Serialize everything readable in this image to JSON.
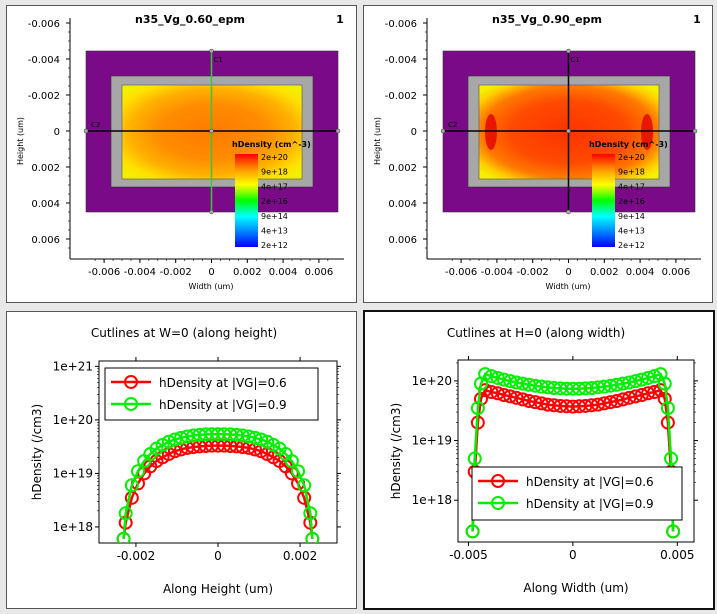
{
  "colors": {
    "purple": "#7a0a87",
    "gray": "#a7a7a7",
    "red_series": "#ff0000",
    "green_series": "#00ee00",
    "black": "#000000"
  },
  "plot_panels": [
    {
      "title": "n35_Vg_0.60_epm",
      "index": "1",
      "xlabel": "Width (um)",
      "ylabel": "Height (um)",
      "xticks": [
        "-0.006",
        "-0.004",
        "-0.002",
        "0",
        "0.002",
        "0.004",
        "0.006"
      ],
      "yticks": [
        "-0.006",
        "-0.004",
        "-0.002",
        "0",
        "0.002",
        "0.004",
        "0.006"
      ],
      "cut_labels": [
        "C1",
        "C2"
      ],
      "legend_title": "hDensity (cm^-3)",
      "legend_ticks": [
        "2e+20",
        "9e+18",
        "4e+17",
        "2e+16",
        "9e+14",
        "4e+13",
        "2e+12"
      ],
      "vertical_cut_color": "#33cc33"
    },
    {
      "title": "n35_Vg_0.90_epm",
      "index": "1",
      "xlabel": "Width (um)",
      "ylabel": "Height (um)",
      "xticks": [
        "-0.006",
        "-0.004",
        "-0.002",
        "0",
        "0.002",
        "0.004",
        "0.006"
      ],
      "yticks": [
        "-0.006",
        "-0.004",
        "-0.002",
        "0",
        "0.002",
        "0.004",
        "0.006"
      ],
      "cut_labels": [
        "C1",
        "C2"
      ],
      "legend_title": "hDensity (cm^-3)",
      "legend_ticks": [
        "2e+20",
        "9e+18",
        "4e+17",
        "2e+16",
        "9e+14",
        "4e+13",
        "2e+12"
      ],
      "vertical_cut_color": "#000000"
    }
  ],
  "chart_data": [
    {
      "type": "line",
      "title": "Cutlines at W=0 (along height)",
      "xlabel": "Along Height (um)",
      "ylabel": "hDensity (/cm3)",
      "xlim": [
        -0.0029,
        0.0029
      ],
      "ylim_exp": [
        17.7,
        21.1
      ],
      "log_y": true,
      "xticks": [
        -0.002,
        0,
        0.002
      ],
      "xtick_labels": [
        "-0.002",
        "0",
        "0.002"
      ],
      "yticks_exp": [
        18,
        19,
        20,
        21
      ],
      "ytick_labels": [
        "1e+18",
        "1e+19",
        "1e+20",
        "1e+21"
      ],
      "legend_position": "top-right",
      "series": [
        {
          "name": "hDensity at |VG|=0.6",
          "color": "#ff0000",
          "x": [
            -0.0023,
            -0.00225,
            -0.0021,
            -0.00195,
            -0.0018,
            -0.00165,
            -0.0015,
            -0.00135,
            -0.0012,
            -0.00105,
            -0.0009,
            -0.00075,
            -0.0006,
            -0.00045,
            -0.0003,
            -0.00015,
            0.0,
            0.00015,
            0.0003,
            0.00045,
            0.0006,
            0.00075,
            0.0009,
            0.00105,
            0.0012,
            0.00135,
            0.0015,
            0.00165,
            0.0018,
            0.00195,
            0.0021,
            0.00225,
            0.0023
          ],
          "y": [
            6e+17,
            1.2e+18,
            3.5e+18,
            6.5e+18,
            1e+19,
            1.35e+19,
            1.7e+19,
            2e+19,
            2.3e+19,
            2.6e+19,
            2.8e+19,
            3e+19,
            3.1e+19,
            3.2e+19,
            3.25e+19,
            3.3e+19,
            3.3e+19,
            3.3e+19,
            3.25e+19,
            3.2e+19,
            3.1e+19,
            3e+19,
            2.8e+19,
            2.6e+19,
            2.3e+19,
            2e+19,
            1.7e+19,
            1.35e+19,
            1e+19,
            6.5e+18,
            3.5e+18,
            1.2e+18,
            6e+17
          ]
        },
        {
          "name": "hDensity at |VG|=0.9",
          "color": "#00ee00",
          "x": [
            -0.0023,
            -0.00225,
            -0.0021,
            -0.00195,
            -0.0018,
            -0.00165,
            -0.0015,
            -0.00135,
            -0.0012,
            -0.00105,
            -0.0009,
            -0.00075,
            -0.0006,
            -0.00045,
            -0.0003,
            -0.00015,
            0.0,
            0.00015,
            0.0003,
            0.00045,
            0.0006,
            0.00075,
            0.0009,
            0.00105,
            0.0012,
            0.00135,
            0.0015,
            0.00165,
            0.0018,
            0.00195,
            0.0021,
            0.00225,
            0.0023
          ],
          "y": [
            6e+17,
            1.8e+18,
            6e+18,
            1.1e+19,
            1.7e+19,
            2.3e+19,
            2.9e+19,
            3.4e+19,
            3.9e+19,
            4.3e+19,
            4.6e+19,
            4.9e+19,
            5.1e+19,
            5.25e+19,
            5.35e+19,
            5.4e+19,
            5.4e+19,
            5.4e+19,
            5.35e+19,
            5.25e+19,
            5.1e+19,
            4.9e+19,
            4.6e+19,
            4.3e+19,
            3.9e+19,
            3.4e+19,
            2.9e+19,
            2.3e+19,
            1.7e+19,
            1.1e+19,
            6e+18,
            1.8e+18,
            6e+17
          ]
        }
      ]
    },
    {
      "type": "line",
      "title": "Cutlines at H=0 (along width)",
      "xlabel": "Along Width (um)",
      "ylabel": "hDensity (/cm3)",
      "xlim": [
        -0.0055,
        0.0058
      ],
      "ylim_exp": [
        17.3,
        20.35
      ],
      "log_y": true,
      "xticks": [
        -0.005,
        0,
        0.005
      ],
      "xtick_labels": [
        "-0.005",
        "0",
        "0.005"
      ],
      "yticks_exp": [
        18,
        19,
        20
      ],
      "ytick_labels": [
        "1e+18",
        "1e+19",
        "1e+20"
      ],
      "legend_position": "bottom-right",
      "series": [
        {
          "name": "hDensity at |VG|=0.6",
          "color": "#ff0000",
          "x": [
            -0.0048,
            -0.0047,
            -0.00455,
            -0.0044,
            -0.0042,
            -0.0039,
            -0.0036,
            -0.0033,
            -0.003,
            -0.0027,
            -0.0024,
            -0.0021,
            -0.0018,
            -0.0015,
            -0.0012,
            -0.0009,
            -0.0006,
            -0.0003,
            0.0,
            0.0003,
            0.0006,
            0.0009,
            0.0012,
            0.0015,
            0.0018,
            0.0021,
            0.0024,
            0.0027,
            0.003,
            0.0033,
            0.0036,
            0.0039,
            0.0042,
            0.0044,
            0.00455,
            0.0047,
            0.0048
          ],
          "y": [
            3e+17,
            3e+18,
            2e+19,
            5e+19,
            7e+19,
            6.5e+19,
            6.2e+19,
            5.8e+19,
            5.5e+19,
            5.2e+19,
            4.9e+19,
            4.6e+19,
            4.4e+19,
            4.2e+19,
            4e+19,
            3.9e+19,
            3.8e+19,
            3.75e+19,
            3.7e+19,
            3.75e+19,
            3.8e+19,
            3.9e+19,
            4e+19,
            4.2e+19,
            4.4e+19,
            4.6e+19,
            4.9e+19,
            5.2e+19,
            5.5e+19,
            5.8e+19,
            6.2e+19,
            6.5e+19,
            7e+19,
            5e+19,
            2e+19,
            3e+18,
            3e+17
          ]
        },
        {
          "name": "hDensity at |VG|=0.9",
          "color": "#00ee00",
          "x": [
            -0.0048,
            -0.0047,
            -0.00455,
            -0.0044,
            -0.0042,
            -0.0039,
            -0.0036,
            -0.0033,
            -0.003,
            -0.0027,
            -0.0024,
            -0.0021,
            -0.0018,
            -0.0015,
            -0.0012,
            -0.0009,
            -0.0006,
            -0.0003,
            0.0,
            0.0003,
            0.0006,
            0.0009,
            0.0012,
            0.0015,
            0.0018,
            0.0021,
            0.0024,
            0.0027,
            0.003,
            0.0033,
            0.0036,
            0.0039,
            0.0042,
            0.0044,
            0.00455,
            0.0047,
            0.0048
          ],
          "y": [
            3e+17,
            5e+18,
            3.5e+19,
            9e+19,
            1.3e+20,
            1.2e+20,
            1.12e+20,
            1.05e+20,
            9.9e+19,
            9.4e+19,
            9e+19,
            8.6e+19,
            8.3e+19,
            8e+19,
            7.8e+19,
            7.6e+19,
            7.5e+19,
            7.4e+19,
            7.4e+19,
            7.4e+19,
            7.5e+19,
            7.6e+19,
            7.8e+19,
            8e+19,
            8.3e+19,
            8.6e+19,
            9e+19,
            9.4e+19,
            9.9e+19,
            1.05e+20,
            1.12e+20,
            1.2e+20,
            1.3e+20,
            9e+19,
            3.5e+19,
            5e+18,
            3e+17
          ]
        }
      ]
    }
  ]
}
